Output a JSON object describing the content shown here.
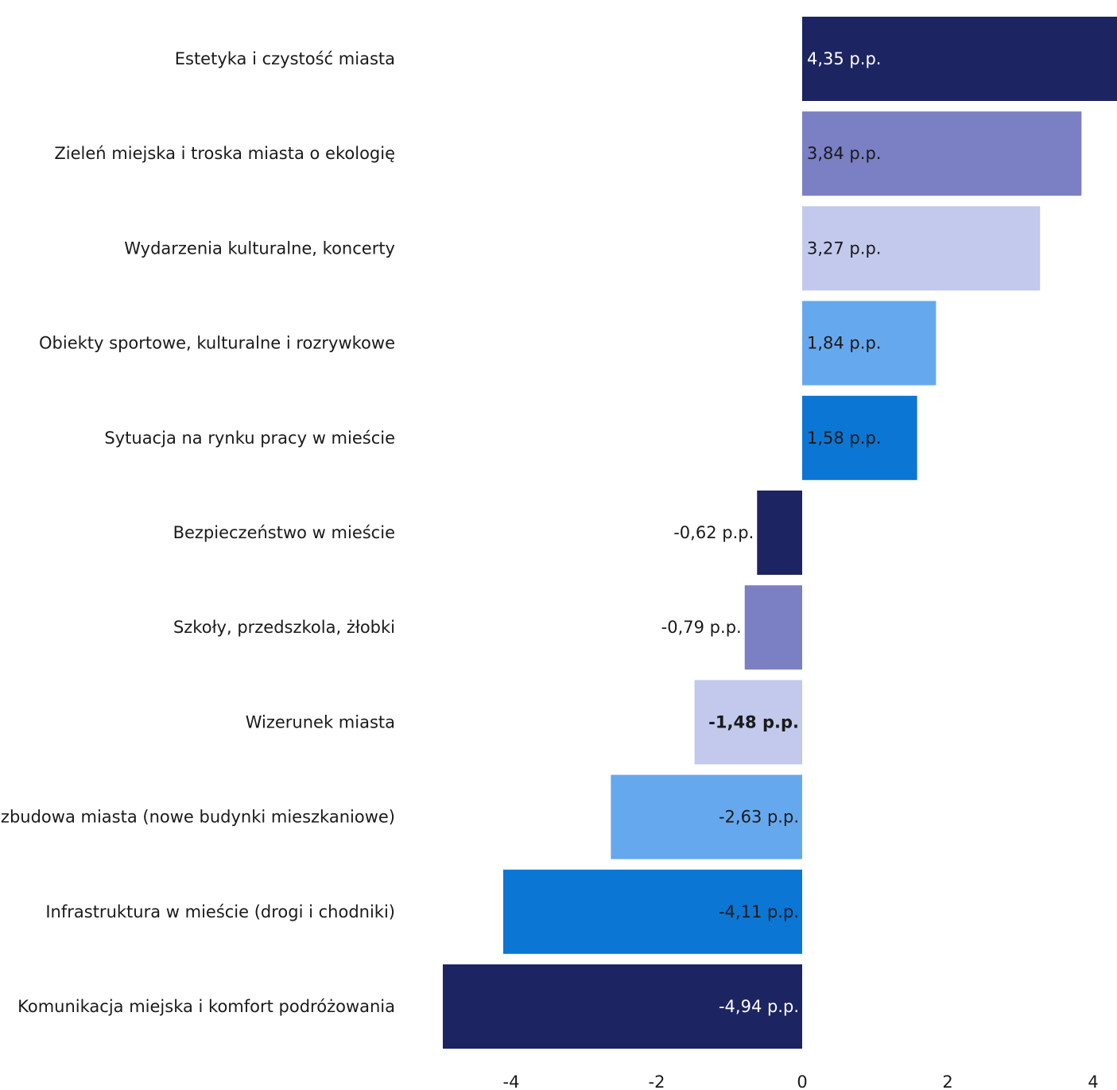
{
  "chart_data": {
    "type": "bar",
    "orientation": "horizontal",
    "categories": [
      "Estetyka i czystość miasta",
      "Zieleń miejska i troska miasta o ekologię",
      "Wydarzenia kulturalne, koncerty",
      "Obiekty sportowe, kulturalne i rozrywkowe",
      "Sytuacja na rynku pracy w mieście",
      "Bezpieczeństwo w mieście",
      "Szkoły, przedszkola, żłobki",
      "Wizerunek miasta",
      "Rozbudowa miasta (nowe budynki mieszkaniowe)",
      "Infrastruktura w mieście (drogi i chodniki)",
      "Komunikacja miejska i komfort podróżowania"
    ],
    "values": [
      4.35,
      3.84,
      3.27,
      1.84,
      1.58,
      -0.62,
      -0.79,
      -1.48,
      -2.63,
      -4.11,
      -4.94
    ],
    "data_labels": [
      "4,35 p.p.",
      "3,84 p.p.",
      "3,27 p.p.",
      "1,84 p.p.",
      "1,58 p.p.",
      "-0,62 p.p.",
      "-0,79 p.p.",
      "-1,48 p.p.",
      "-2,63 p.p.",
      "-4,11 p.p.",
      "-4,94 p.p."
    ],
    "colors": [
      "#1c2462",
      "#7b7fc4",
      "#c2c9ec",
      "#66a8ee",
      "#0b76d4",
      "#1c2462",
      "#7b7fc4",
      "#c2c9ec",
      "#66a8ee",
      "#0b76d4",
      "#1c2462"
    ],
    "label_colors": [
      "#ffffff",
      "#1a1a1a",
      "#1a1a1a",
      "#1a1a1a",
      "#1a1a1a",
      "#1a1a1a",
      "#1a1a1a",
      "#1a1a1a",
      "#1a1a1a",
      "#1a1a1a",
      "#ffffff"
    ],
    "x_ticks": [
      "-4",
      "-2",
      "0",
      "2",
      "4"
    ],
    "x_tick_values": [
      -4,
      -2,
      0,
      2,
      4
    ],
    "xlim": [
      -5,
      4.4
    ],
    "title": "",
    "xlabel": "",
    "ylabel": "",
    "grid": false,
    "legend": false
  }
}
